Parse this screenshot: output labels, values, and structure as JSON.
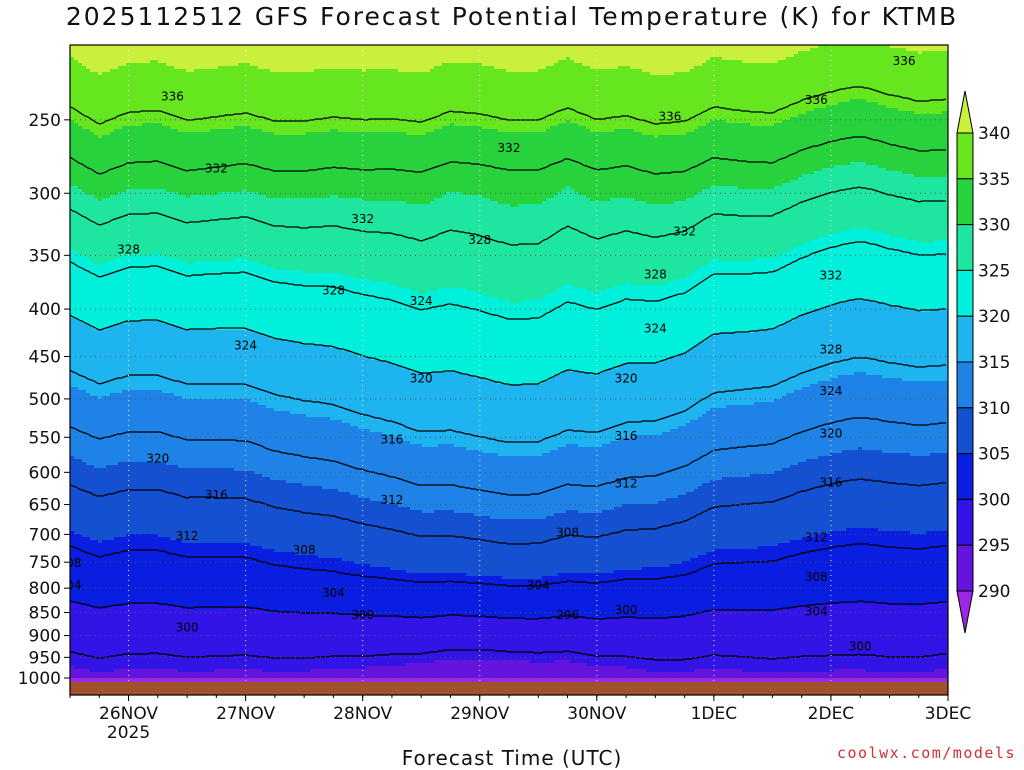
{
  "title": "2025112512 GFS Forecast Potential Temperature (K) for KTMB",
  "credit": "coolwx.com/models",
  "colors": {
    "ground": "#a0522d",
    "contour": "#000000",
    "grid": "#555555"
  },
  "chart_data": {
    "type": "heatmap",
    "title": "2025112512 GFS Forecast Potential Temperature (K) for KTMB",
    "xlabel": "Forecast Time (UTC)",
    "ylabel": "",
    "y_scale": "log-pressure",
    "ylim": [
      1000,
      200
    ],
    "x_range": [
      "2025-11-25T12Z",
      "2025-12-03T00Z"
    ],
    "grid": "dotted",
    "x_ticks": [
      {
        "label": "26NOV",
        "sub": "2025",
        "time": "2025-11-26T00Z"
      },
      {
        "label": "27NOV",
        "sub": "",
        "time": "2025-11-27T00Z"
      },
      {
        "label": "28NOV",
        "sub": "",
        "time": "2025-11-28T00Z"
      },
      {
        "label": "29NOV",
        "sub": "",
        "time": "2025-11-29T00Z"
      },
      {
        "label": "30NOV",
        "sub": "",
        "time": "2025-11-30T00Z"
      },
      {
        "label": "1DEC",
        "sub": "",
        "time": "2025-12-01T00Z"
      },
      {
        "label": "2DEC",
        "sub": "",
        "time": "2025-12-02T00Z"
      },
      {
        "label": "3DEC",
        "sub": "",
        "time": "2025-12-03T00Z"
      }
    ],
    "y_ticks": [
      250,
      300,
      350,
      400,
      450,
      500,
      550,
      600,
      650,
      700,
      750,
      800,
      850,
      900,
      950,
      1000
    ],
    "colorbar": {
      "labels": [
        340,
        335,
        330,
        325,
        320,
        315,
        310,
        305,
        300,
        295,
        290
      ],
      "colors": [
        "#c8f03c",
        "#66e61e",
        "#28d23c",
        "#1ee6a0",
        "#00f0dc",
        "#1eb4f0",
        "#1e82e6",
        "#1450d2",
        "#0a1ee1",
        "#3214e6",
        "#6414dc",
        "#9b28e6"
      ],
      "extend": "both"
    },
    "contour_interval": 4,
    "contour_levels": [
      296,
      300,
      304,
      308,
      312,
      316,
      320,
      324,
      328,
      332,
      336
    ],
    "contour_labels": [
      {
        "text": "336",
        "x": "2025-11-26T09Z",
        "p": 236
      },
      {
        "text": "336",
        "x": "2025-11-30T15Z",
        "p": 248
      },
      {
        "text": "336",
        "x": "2025-12-01T21Z",
        "p": 238
      },
      {
        "text": "336",
        "x": "2025-12-02T15Z",
        "p": 216
      },
      {
        "text": "332",
        "x": "2025-11-26T18Z",
        "p": 282
      },
      {
        "text": "332",
        "x": "2025-11-28T00Z",
        "p": 320
      },
      {
        "text": "332",
        "x": "2025-11-29T06Z",
        "p": 268
      },
      {
        "text": "332",
        "x": "2025-11-30T18Z",
        "p": 330
      },
      {
        "text": "332",
        "x": "2025-12-02T00Z",
        "p": 368
      },
      {
        "text": "328",
        "x": "2025-11-26T00Z",
        "p": 345
      },
      {
        "text": "328",
        "x": "2025-11-27T18Z",
        "p": 382
      },
      {
        "text": "328",
        "x": "2025-11-29T00Z",
        "p": 337
      },
      {
        "text": "328",
        "x": "2025-11-30T12Z",
        "p": 367
      },
      {
        "text": "328",
        "x": "2025-12-02T00Z",
        "p": 442
      },
      {
        "text": "324",
        "x": "2025-11-27T00Z",
        "p": 438
      },
      {
        "text": "324",
        "x": "2025-11-28T12Z",
        "p": 392
      },
      {
        "text": "324",
        "x": "2025-11-30T12Z",
        "p": 420
      },
      {
        "text": "324",
        "x": "2025-12-02T00Z",
        "p": 490
      },
      {
        "text": "320",
        "x": "2025-11-26T06Z",
        "p": 580
      },
      {
        "text": "320",
        "x": "2025-11-28T12Z",
        "p": 475
      },
      {
        "text": "320",
        "x": "2025-11-30T06Z",
        "p": 475
      },
      {
        "text": "320",
        "x": "2025-12-02T00Z",
        "p": 545
      },
      {
        "text": "316",
        "x": "2025-11-26T18Z",
        "p": 635
      },
      {
        "text": "316",
        "x": "2025-11-28T06Z",
        "p": 553
      },
      {
        "text": "316",
        "x": "2025-11-30T06Z",
        "p": 548
      },
      {
        "text": "316",
        "x": "2025-12-02T00Z",
        "p": 615
      },
      {
        "text": "312",
        "x": "2025-11-26T12Z",
        "p": 703
      },
      {
        "text": "312",
        "x": "2025-11-28T06Z",
        "p": 643
      },
      {
        "text": "312",
        "x": "2025-11-30T06Z",
        "p": 617
      },
      {
        "text": "312",
        "x": "2025-12-01T21Z",
        "p": 705
      },
      {
        "text": "308",
        "x": "2025-11-25T12Z",
        "p": 752
      },
      {
        "text": "308",
        "x": "2025-11-27T12Z",
        "p": 728
      },
      {
        "text": "308",
        "x": "2025-11-29T18Z",
        "p": 697
      },
      {
        "text": "308",
        "x": "2025-12-01T21Z",
        "p": 778
      },
      {
        "text": "304",
        "x": "2025-11-25T12Z",
        "p": 795
      },
      {
        "text": "304",
        "x": "2025-11-27T18Z",
        "p": 810
      },
      {
        "text": "304",
        "x": "2025-11-29T12Z",
        "p": 795
      },
      {
        "text": "304",
        "x": "2025-12-01T21Z",
        "p": 848
      },
      {
        "text": "300",
        "x": "2025-11-26T12Z",
        "p": 882
      },
      {
        "text": "300",
        "x": "2025-11-28T00Z",
        "p": 855
      },
      {
        "text": "300",
        "x": "2025-11-30T06Z",
        "p": 845
      },
      {
        "text": "300",
        "x": "2025-12-02T06Z",
        "p": 925
      },
      {
        "text": "296",
        "x": "2025-11-29T18Z",
        "p": 855
      }
    ]
  }
}
